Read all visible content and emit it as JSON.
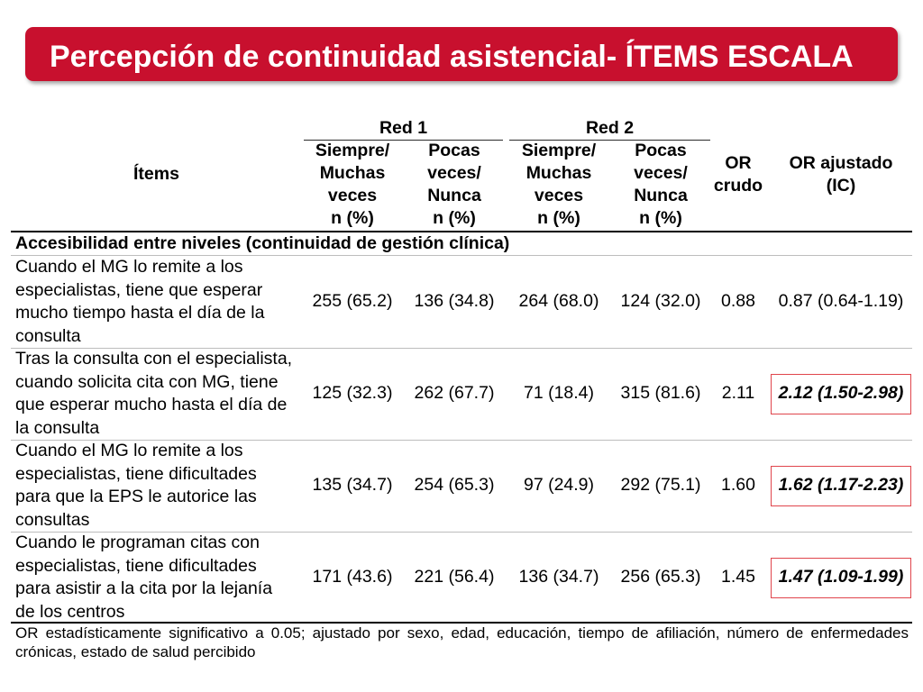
{
  "title": "Percepción de continuidad asistencial- ÍTEMS ESCALA",
  "colors": {
    "title_bar": "#c8102e",
    "highlight_border": "#e0454c"
  },
  "table": {
    "header": {
      "items": "Ítems",
      "red1": "Red 1",
      "red2": "Red 2",
      "red1_siempre": "Siempre/\nMuchas\nveces\nn (%)",
      "red1_pocas": "Pocas\nveces/\nNunca\nn (%)",
      "red2_siempre": "Siempre/\nMuchas\nveces\nn (%)",
      "red2_pocas": "Pocas\nveces/\nNunca\nn (%)",
      "or_crudo": "OR\ncrudo",
      "or_ajustado": "OR ajustado\n(IC)"
    },
    "section": "Accesibilidad entre niveles (continuidad de gestión clínica)",
    "rows": [
      {
        "item": "Cuando el MG lo remite a los\nespecialistas, tiene que esperar\nmucho tiempo hasta el día de la\nconsulta",
        "red1_siempre": "255 (65.2)",
        "red1_pocas": "136 (34.8)",
        "red2_siempre": "264 (68.0)",
        "red2_pocas": "124 (32.0)",
        "or_crudo": "0.88",
        "or_ajustado": "0.87 (0.64-1.19)",
        "highlighted": false
      },
      {
        "item": "Tras la consulta con el especialista,\ncuando solicita cita con MG, tiene\nque esperar mucho hasta el día de\nla consulta",
        "red1_siempre": "125 (32.3)",
        "red1_pocas": "262 (67.7)",
        "red2_siempre": "71 (18.4)",
        "red2_pocas": "315 (81.6)",
        "or_crudo": "2.11",
        "or_ajustado": "2.12 (1.50-2.98)",
        "highlighted": true
      },
      {
        "item": "Cuando el MG lo remite a los\nespecialistas, tiene dificultades\npara que la EPS le autorice las\nconsultas",
        "red1_siempre": "135 (34.7)",
        "red1_pocas": "254 (65.3)",
        "red2_siempre": "97 (24.9)",
        "red2_pocas": "292 (75.1)",
        "or_crudo": "1.60",
        "or_ajustado": "1.62 (1.17-2.23)",
        "highlighted": true
      },
      {
        "item": "Cuando le programan citas con\nespecialistas, tiene dificultades\npara asistir a la cita por la lejanía\nde los centros",
        "red1_siempre": "171 (43.6)",
        "red1_pocas": "221 (56.4)",
        "red2_siempre": "136 (34.7)",
        "red2_pocas": "256 (65.3)",
        "or_crudo": "1.45",
        "or_ajustado": "1.47 (1.09-1.99)",
        "highlighted": true
      }
    ]
  },
  "footnote": "OR estadísticamente significativo a 0.05; ajustado por sexo, edad, educación, tiempo de afiliación, número de enfermedades crónicas, estado de salud percibido"
}
